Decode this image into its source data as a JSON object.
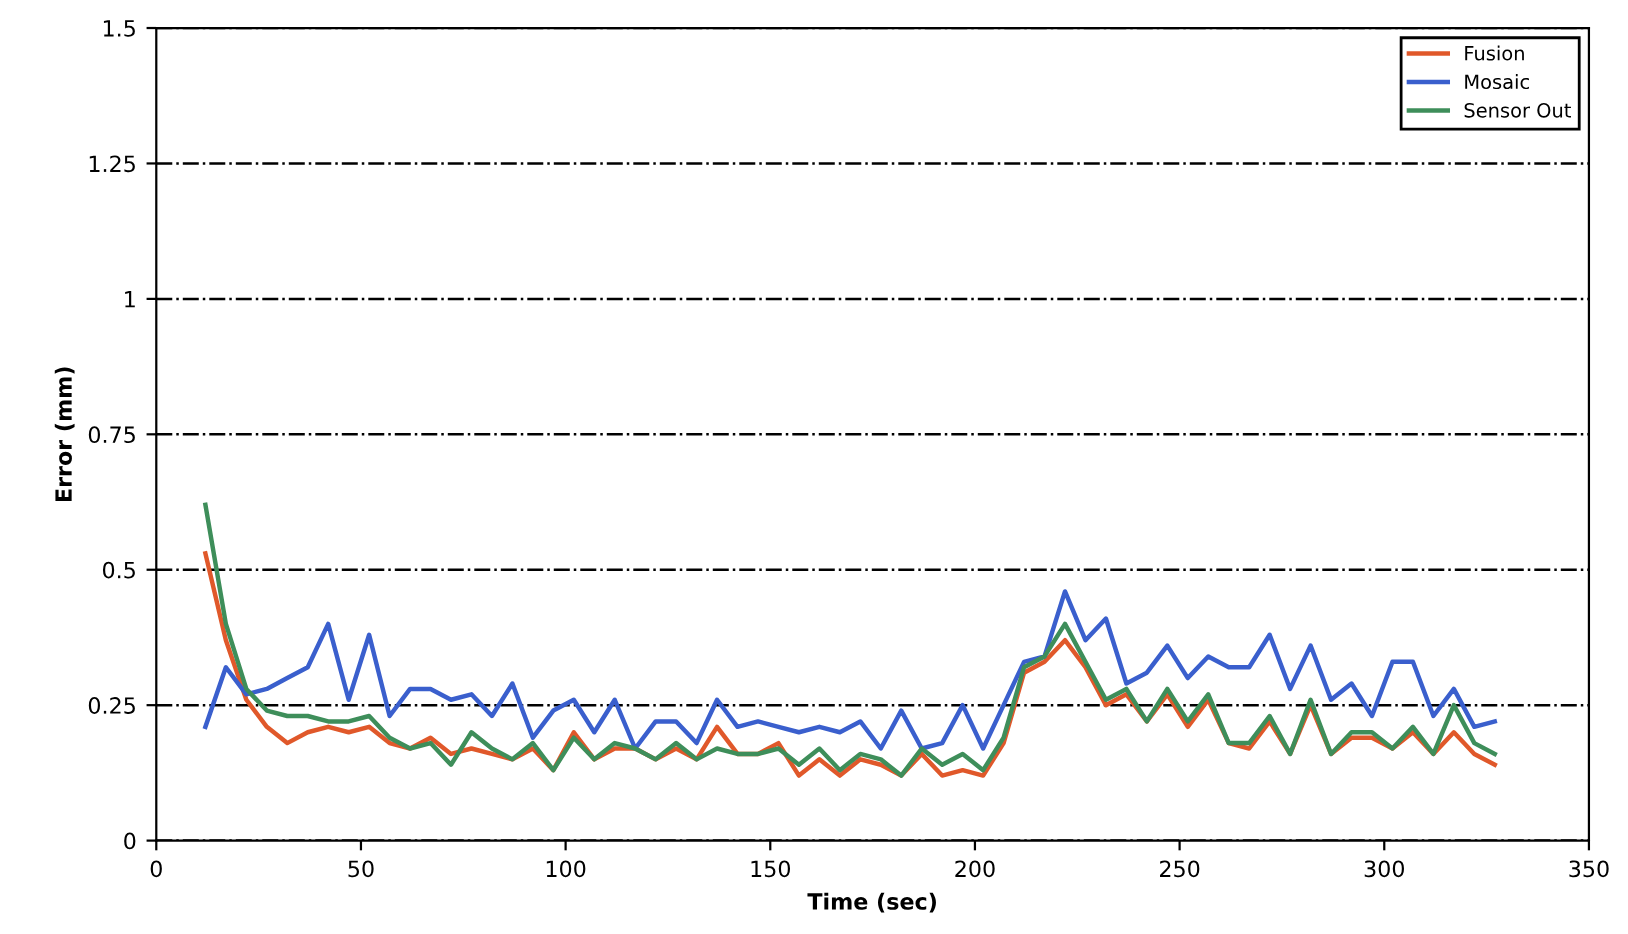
{
  "chart_data": {
    "type": "line",
    "xlabel": "Time (sec)",
    "ylabel": "Error (mm)",
    "x": [
      12,
      17,
      22,
      27,
      32,
      37,
      42,
      47,
      52,
      57,
      62,
      67,
      72,
      77,
      82,
      87,
      92,
      97,
      102,
      107,
      112,
      117,
      122,
      127,
      132,
      137,
      142,
      147,
      152,
      157,
      162,
      167,
      172,
      177,
      182,
      187,
      192,
      197,
      202,
      207,
      212,
      217,
      222,
      227,
      232,
      237,
      242,
      247,
      252,
      257,
      262,
      267,
      272,
      277,
      282,
      287,
      292,
      297,
      302,
      307,
      312,
      317,
      322,
      327
    ],
    "series": [
      {
        "name": "Fusion",
        "color": "#e0582a",
        "values": [
          0.53,
          0.37,
          0.26,
          0.21,
          0.18,
          0.2,
          0.21,
          0.2,
          0.21,
          0.18,
          0.17,
          0.19,
          0.16,
          0.17,
          0.16,
          0.15,
          0.17,
          0.13,
          0.2,
          0.15,
          0.17,
          0.17,
          0.15,
          0.17,
          0.15,
          0.21,
          0.16,
          0.16,
          0.18,
          0.12,
          0.15,
          0.12,
          0.15,
          0.14,
          0.12,
          0.16,
          0.12,
          0.13,
          0.12,
          0.18,
          0.31,
          0.33,
          0.37,
          0.32,
          0.25,
          0.27,
          0.22,
          0.27,
          0.21,
          0.26,
          0.18,
          0.17,
          0.22,
          0.16,
          0.25,
          0.16,
          0.19,
          0.19,
          0.17,
          0.2,
          0.16,
          0.2,
          0.16,
          0.14
        ]
      },
      {
        "name": "Mosaic",
        "color": "#3a5fcd",
        "values": [
          0.21,
          0.32,
          0.27,
          0.28,
          0.3,
          0.32,
          0.4,
          0.26,
          0.38,
          0.23,
          0.28,
          0.28,
          0.26,
          0.27,
          0.23,
          0.29,
          0.19,
          0.24,
          0.26,
          0.2,
          0.26,
          0.17,
          0.22,
          0.22,
          0.18,
          0.26,
          0.21,
          0.22,
          0.21,
          0.2,
          0.21,
          0.2,
          0.22,
          0.17,
          0.24,
          0.17,
          0.18,
          0.25,
          0.17,
          0.25,
          0.33,
          0.34,
          0.46,
          0.37,
          0.41,
          0.29,
          0.31,
          0.36,
          0.3,
          0.34,
          0.32,
          0.32,
          0.38,
          0.28,
          0.36,
          0.26,
          0.29,
          0.23,
          0.33,
          0.33,
          0.23,
          0.28,
          0.21,
          0.22
        ]
      },
      {
        "name": "Sensor Out",
        "color": "#3e8e5a",
        "values": [
          0.62,
          0.4,
          0.28,
          0.24,
          0.23,
          0.23,
          0.22,
          0.22,
          0.23,
          0.19,
          0.17,
          0.18,
          0.14,
          0.2,
          0.17,
          0.15,
          0.18,
          0.13,
          0.19,
          0.15,
          0.18,
          0.17,
          0.15,
          0.18,
          0.15,
          0.17,
          0.16,
          0.16,
          0.17,
          0.14,
          0.17,
          0.13,
          0.16,
          0.15,
          0.12,
          0.17,
          0.14,
          0.16,
          0.13,
          0.19,
          0.32,
          0.34,
          0.4,
          0.33,
          0.26,
          0.28,
          0.22,
          0.28,
          0.22,
          0.27,
          0.18,
          0.18,
          0.23,
          0.16,
          0.26,
          0.16,
          0.2,
          0.2,
          0.17,
          0.21,
          0.16,
          0.25,
          0.18,
          0.16
        ]
      }
    ],
    "xlim": [
      0,
      350
    ],
    "xticks": [
      0,
      50,
      100,
      150,
      200,
      250,
      300,
      350
    ],
    "ylim": [
      0,
      1.5
    ],
    "yticks": [
      0,
      0.25,
      0.5,
      0.75,
      1,
      1.25,
      1.5
    ],
    "grid": "y",
    "legend": "top right",
    "marker": "none",
    "line_style": "solid"
  }
}
